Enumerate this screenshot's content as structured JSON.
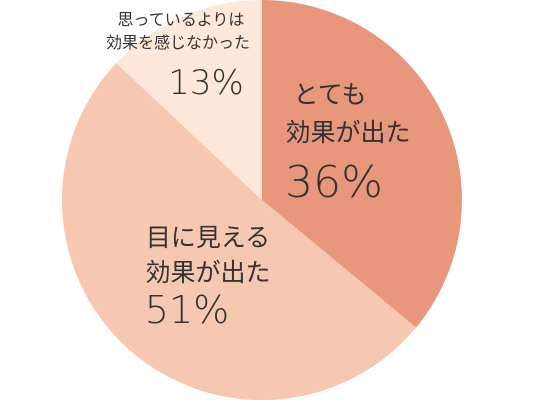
{
  "chart_data": {
    "type": "pie",
    "title": "",
    "start_angle_deg": 0,
    "direction": "clockwise",
    "slices": [
      {
        "label_lines": [
          "とても",
          "効果が出た"
        ],
        "percent_label": "36%",
        "value": 36,
        "color": "#e8967c"
      },
      {
        "label_lines": [
          "目に見える",
          "効果が出た"
        ],
        "percent_label": "51%",
        "value": 51,
        "color": "#f6c8b1"
      },
      {
        "label_lines": [
          "思っているよりは",
          "効果を感じなかった"
        ],
        "percent_label": "13%",
        "value": 13,
        "color": "#fde8d9"
      }
    ]
  }
}
